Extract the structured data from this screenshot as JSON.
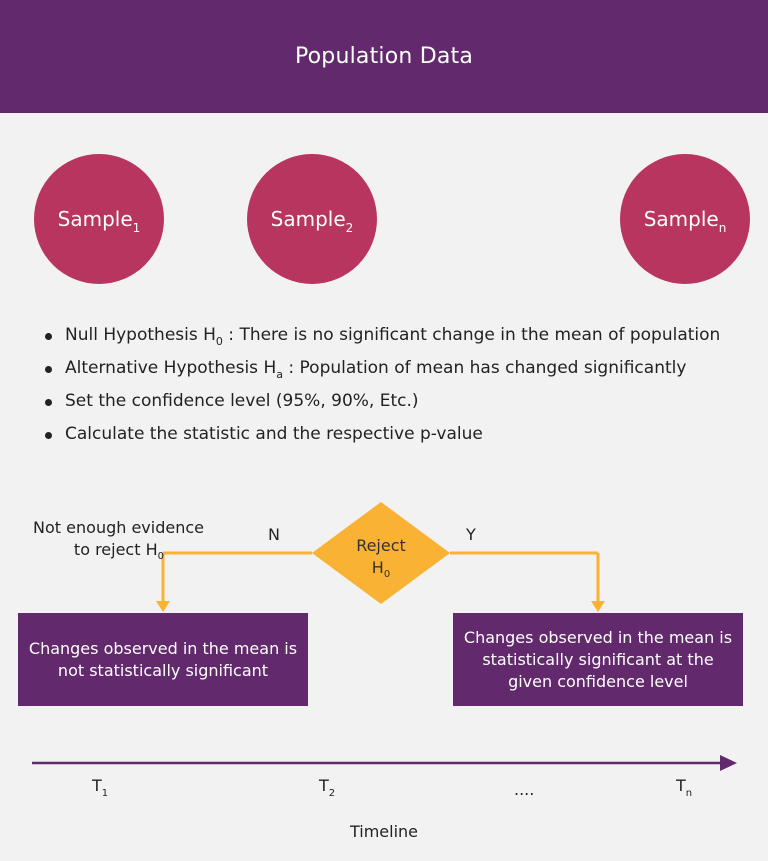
{
  "header": {
    "title": "Population Data"
  },
  "samples": [
    {
      "base": "Sample",
      "sub": "1"
    },
    {
      "base": "Sample",
      "sub": "2"
    },
    {
      "base": "Sample",
      "sub": "n"
    }
  ],
  "bullets": [
    {
      "pre": "Null Hypothesis H",
      "sub": "0",
      "post": " : There is no significant change in the mean of population"
    },
    {
      "pre": "Alternative Hypothesis H",
      "sub": "a",
      "post": " : Population of mean has changed significantly"
    },
    {
      "pre": "Set the confidence level (95%, 90%, Etc.)",
      "sub": "",
      "post": ""
    },
    {
      "pre": "Calculate the statistic and the respective p-value",
      "sub": "",
      "post": ""
    }
  ],
  "decision": {
    "line1": "Reject",
    "line2_base": "H",
    "line2_sub": "0",
    "no_label": "N",
    "yes_label": "Y",
    "no_note_line1": "Not enough evidence",
    "no_note_line2_base": "to reject H",
    "no_note_line2_sub": "0"
  },
  "outcomes": {
    "left": "Changes observed in the mean is not statistically significant",
    "right": "Changes observed in the mean is statistically significant at the given confidence level"
  },
  "timeline": {
    "ticks": [
      {
        "base": "T",
        "sub": "1"
      },
      {
        "base": "T",
        "sub": "2"
      },
      {
        "base": "....",
        "sub": ""
      },
      {
        "base": "T",
        "sub": "n"
      }
    ],
    "label": "Timeline"
  },
  "colors": {
    "purple": "#62296d",
    "crimson": "#b7355e",
    "amber": "#f9b233",
    "background": "#f2f2f2"
  }
}
